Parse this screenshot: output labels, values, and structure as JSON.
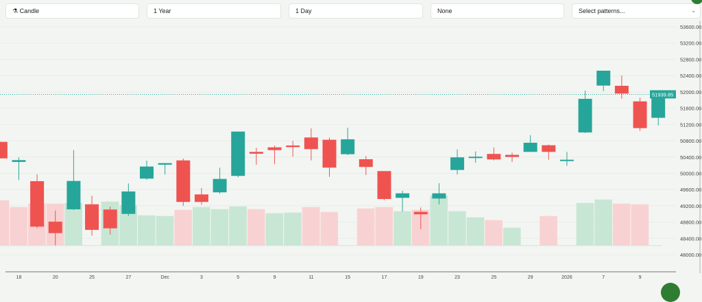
{
  "toolbar": {
    "chart_type": {
      "label": "Candle",
      "icon": "candlestick-icon"
    },
    "range": {
      "label": "1 Year"
    },
    "interval": {
      "label": "1 Day"
    },
    "indicator": {
      "label": "None"
    },
    "patterns": {
      "placeholder": "Select patterns..."
    }
  },
  "colors": {
    "up": "#26a69a",
    "down": "#ef5350",
    "volume_up": "#c8e6d4",
    "volume_down": "#f8d2d2"
  },
  "chart_data": {
    "type": "candlestick",
    "y_ticks": [
      "53600.00",
      "53200.00",
      "52800.00",
      "52400.00",
      "52000.00",
      "51600.00",
      "51200.00",
      "50800.00",
      "50400.00",
      "50000.00",
      "49600.00",
      "49200.00",
      "48800.00",
      "48400.00",
      "48000.00"
    ],
    "ylim": [
      48000,
      53600
    ],
    "x_ticks": [
      {
        "index": 1,
        "label": "18"
      },
      {
        "index": 3,
        "label": "20"
      },
      {
        "index": 5,
        "label": "25"
      },
      {
        "index": 7,
        "label": "27"
      },
      {
        "index": 9,
        "label": "Dec"
      },
      {
        "index": 11,
        "label": "3"
      },
      {
        "index": 13,
        "label": "5"
      },
      {
        "index": 15,
        "label": "9"
      },
      {
        "index": 17,
        "label": "11"
      },
      {
        "index": 19,
        "label": "15"
      },
      {
        "index": 21,
        "label": "17"
      },
      {
        "index": 23,
        "label": "19"
      },
      {
        "index": 25,
        "label": "23"
      },
      {
        "index": 27,
        "label": "25"
      },
      {
        "index": 29,
        "label": "29"
      },
      {
        "index": 31,
        "label": "2026"
      },
      {
        "index": 33,
        "label": "7"
      },
      {
        "index": 35,
        "label": "9"
      }
    ],
    "last_price": "51939.85",
    "last_price_value": 51939.85,
    "candles": [
      {
        "o": 50772,
        "h": 50772,
        "l": 50367,
        "c": 50367,
        "vol": 66
      },
      {
        "o": 50279,
        "h": 50392,
        "l": 49835,
        "c": 50324,
        "vol": 56
      },
      {
        "o": 49807,
        "h": 49975,
        "l": 48648,
        "c": 48689,
        "vol": 61
      },
      {
        "o": 48812,
        "h": 49087,
        "l": 48227,
        "c": 48530,
        "vol": 61
      },
      {
        "o": 49115,
        "h": 50570,
        "l": 49098,
        "c": 49812,
        "vol": 62,
        "vup": true
      },
      {
        "o": 49238,
        "h": 49447,
        "l": 48469,
        "c": 48610,
        "vol": 0
      },
      {
        "o": 49110,
        "h": 49183,
        "l": 48497,
        "c": 48648,
        "vol": 64,
        "vup": true
      },
      {
        "o": 49002,
        "h": 49751,
        "l": 48952,
        "c": 49554,
        "vol": 59,
        "vup": true
      },
      {
        "o": 49869,
        "h": 50312,
        "l": 49840,
        "c": 50166,
        "vol": 44,
        "vup": true
      },
      {
        "o": 50211,
        "h": 50250,
        "l": 49970,
        "c": 50250,
        "vol": 43,
        "vup": true
      },
      {
        "o": 50317,
        "h": 50363,
        "l": 49200,
        "c": 49296,
        "vol": 52
      },
      {
        "o": 49481,
        "h": 49638,
        "l": 49228,
        "c": 49296,
        "vol": 56,
        "vup": true
      },
      {
        "o": 49532,
        "h": 50139,
        "l": 49498,
        "c": 49862,
        "vol": 53,
        "vup": true
      },
      {
        "o": 49936,
        "h": 51025,
        "l": 49903,
        "c": 51025,
        "vol": 57,
        "vup": true
      },
      {
        "o": 50526,
        "h": 50627,
        "l": 50211,
        "c": 50481,
        "vol": 53
      },
      {
        "o": 50638,
        "h": 50683,
        "l": 50223,
        "c": 50570,
        "vol": 47,
        "vup": true
      },
      {
        "o": 50683,
        "h": 50796,
        "l": 50408,
        "c": 50644,
        "vol": 48,
        "vup": true
      },
      {
        "o": 50880,
        "h": 51105,
        "l": 50317,
        "c": 50594,
        "vol": 56
      },
      {
        "o": 50824,
        "h": 50874,
        "l": 49913,
        "c": 50139,
        "vol": 49
      },
      {
        "o": 50469,
        "h": 51122,
        "l": 50447,
        "c": 50835,
        "vol": 0
      },
      {
        "o": 50346,
        "h": 50425,
        "l": 49958,
        "c": 50156,
        "vol": 54
      },
      {
        "o": 50054,
        "h": 50054,
        "l": 49340,
        "c": 49368,
        "vol": 56
      },
      {
        "o": 49397,
        "h": 49570,
        "l": 49060,
        "c": 49508,
        "vol": 50,
        "vup": true
      },
      {
        "o": 49053,
        "h": 49161,
        "l": 48627,
        "c": 48992,
        "vol": 52
      },
      {
        "o": 49380,
        "h": 49756,
        "l": 49238,
        "c": 49508,
        "vol": 73,
        "vup": true
      },
      {
        "o": 50082,
        "h": 50587,
        "l": 49970,
        "c": 50392,
        "vol": 50,
        "vup": true
      },
      {
        "o": 50375,
        "h": 50537,
        "l": 50262,
        "c": 50408,
        "vol": 41,
        "vup": true
      },
      {
        "o": 50476,
        "h": 50633,
        "l": 50317,
        "c": 50341,
        "vol": 37
      },
      {
        "o": 50453,
        "h": 50510,
        "l": 50279,
        "c": 50402,
        "vol": 26,
        "vup": true
      },
      {
        "o": 50526,
        "h": 50936,
        "l": 50526,
        "c": 50751,
        "vol": 0
      },
      {
        "o": 50689,
        "h": 50705,
        "l": 50334,
        "c": 50526,
        "vol": 43
      },
      {
        "o": 50300,
        "h": 50526,
        "l": 50182,
        "c": 50334,
        "vol": 0
      },
      {
        "o": 51004,
        "h": 52032,
        "l": 50987,
        "c": 51830,
        "vol": 62,
        "vup": true
      },
      {
        "o": 52155,
        "h": 52521,
        "l": 52020,
        "c": 52521,
        "vol": 67,
        "vup": true
      },
      {
        "o": 52150,
        "h": 52403,
        "l": 51830,
        "c": 51959,
        "vol": 61
      },
      {
        "o": 51767,
        "h": 51858,
        "l": 51042,
        "c": 51110,
        "vol": 60
      },
      {
        "o": 51363,
        "h": 51981,
        "l": 51177,
        "c": 51943,
        "vol": 0
      }
    ]
  }
}
